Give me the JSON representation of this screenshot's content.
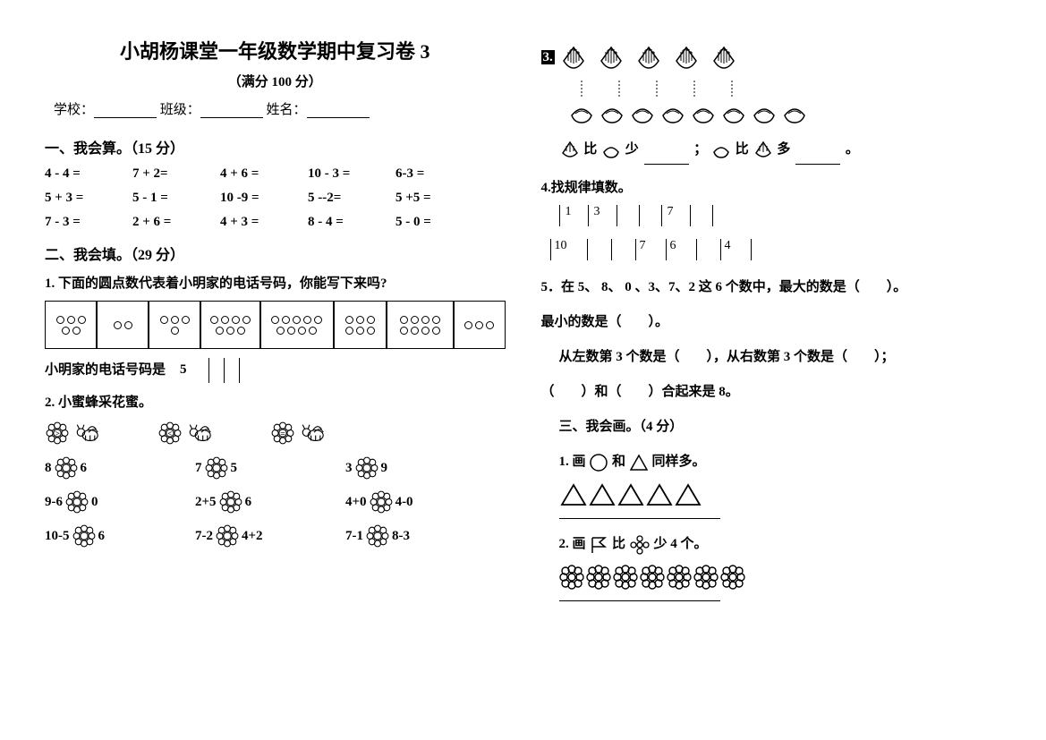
{
  "title": "小胡杨课堂一年级数学期中复习卷 3",
  "subtitle": "（满分 100 分）",
  "info": {
    "school": "学校：",
    "class": "班级：",
    "name": "姓名："
  },
  "s1": {
    "heading": "一、我会算。（15 分）",
    "rows": [
      [
        "4 - 4 =",
        "7 + 2=",
        "4 + 6 =",
        "10 - 3 =",
        "6-3 ="
      ],
      [
        "5 + 3 =",
        "5 - 1 =",
        "10 -9 =",
        "5 --2=",
        "5 +5 ="
      ],
      [
        "7 - 3 =",
        "2 + 6 =",
        "4 + 3 =",
        "8 - 4 =",
        "5 - 0 ="
      ]
    ]
  },
  "s2": {
    "heading": "二、我会填。（29 分）",
    "q1": "1. 下面的圆点数代表着小明家的电话号码，你能写下来吗?",
    "dots": [
      5,
      2,
      4,
      7,
      9,
      6,
      8,
      3
    ],
    "phone_label": "小明家的电话号码是",
    "phone_first": "5",
    "q2": "2. 小蜜蜂采花蜜。",
    "ops": [
      ">",
      "<",
      "="
    ],
    "compares": [
      [
        "8",
        "6",
        "7",
        "5",
        "3",
        "9"
      ],
      [
        "9-6",
        "0",
        "2+5",
        "6",
        "4+0",
        "4-0"
      ],
      [
        "10-5",
        "6",
        "7-2",
        "4+2",
        "7-1",
        "8-3"
      ]
    ]
  },
  "q3": {
    "num": "3.",
    "top_count": 5,
    "bot_count": 8,
    "line1a": "比",
    "line1b": "少",
    "line2a": "；",
    "line2b": "比",
    "line2c": "多",
    "line2d": "。"
  },
  "q4": {
    "heading": "4.找规律填数。",
    "ruler1": [
      "1",
      "3",
      "",
      "",
      "7",
      ""
    ],
    "ruler2": [
      "10",
      "",
      "",
      "7",
      "6",
      "",
      "4"
    ]
  },
  "q5": {
    "line1": "5．在 5、 8、 0 、3、7、2 这 6 个数中，最大的数是（　　）。",
    "line2": "最小的数是（　　）。",
    "line3": "从左数第 3 个数是（　　），从右数第 3 个数是（　　）；",
    "line4": "（　　）和（　　）合起来是 8。"
  },
  "s3": {
    "heading": "三、我会画。（4 分）",
    "q1a": "1. 画",
    "q1b": "和",
    "q1c": "同样多。",
    "tri_count": 5,
    "q2a": "2. 画",
    "q2b": "比",
    "q2c": "少 4 个。",
    "flower_count": 7
  }
}
